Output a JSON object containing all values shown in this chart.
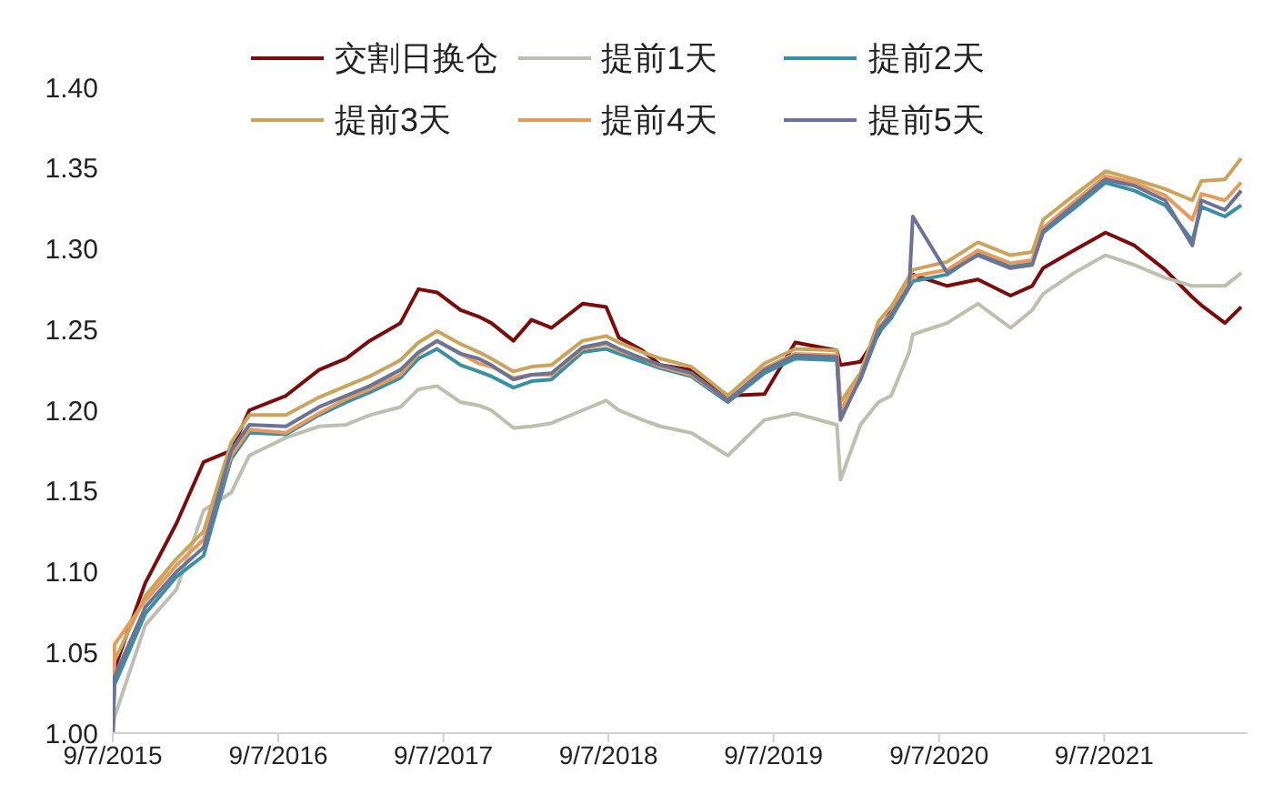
{
  "chart_data": {
    "type": "line",
    "x": [
      "2015-09-07",
      "2015-09-11",
      "2015-11-18",
      "2016-01-26",
      "2016-03-26",
      "2016-05-26",
      "2016-07-05",
      "2016-09-24",
      "2016-12-06",
      "2017-02-04",
      "2017-03-28",
      "2017-06-04",
      "2017-07-14",
      "2017-08-24",
      "2017-10-15",
      "2017-11-24",
      "2017-12-22",
      "2018-02-09",
      "2018-03-21",
      "2018-05-04",
      "2018-07-12",
      "2018-09-02",
      "2018-09-30",
      "2018-11-21",
      "2018-12-31",
      "2019-03-09",
      "2019-05-29",
      "2019-08-18",
      "2019-10-25",
      "2020-01-25",
      "2020-02-02",
      "2020-03-17",
      "2020-04-26",
      "2020-05-24",
      "2020-07-03",
      "2020-07-11",
      "2020-09-25",
      "2020-12-02",
      "2021-02-12",
      "2021-04-01",
      "2021-04-25",
      "2021-07-02",
      "2021-09-10",
      "2021-11-13",
      "2022-01-20",
      "2022-03-21",
      "2022-04-10",
      "2022-06-01",
      "2022-07-07"
    ],
    "series": [
      {
        "name": "交割日换仓",
        "color": "#7b0c0c",
        "values": [
          1.0,
          1.04,
          1.093,
          1.13,
          1.168,
          1.175,
          1.2,
          1.209,
          1.225,
          1.232,
          1.243,
          1.254,
          1.275,
          1.273,
          1.262,
          1.258,
          1.254,
          1.243,
          1.256,
          1.251,
          1.266,
          1.264,
          1.245,
          1.237,
          1.228,
          1.225,
          1.209,
          1.21,
          1.242,
          1.237,
          1.228,
          1.23,
          1.247,
          1.262,
          1.277,
          1.284,
          1.277,
          1.281,
          1.271,
          1.277,
          1.288,
          1.299,
          1.31,
          1.302,
          1.287,
          1.27,
          1.265,
          1.254,
          1.264
        ]
      },
      {
        "name": "提前1天",
        "color": "#bfbfb0",
        "values": [
          1.0,
          1.01,
          1.067,
          1.089,
          1.138,
          1.149,
          1.172,
          1.183,
          1.19,
          1.191,
          1.197,
          1.202,
          1.213,
          1.215,
          1.205,
          1.203,
          1.2,
          1.189,
          1.19,
          1.192,
          1.2,
          1.206,
          1.2,
          1.194,
          1.19,
          1.186,
          1.172,
          1.194,
          1.198,
          1.191,
          1.157,
          1.191,
          1.205,
          1.209,
          1.236,
          1.247,
          1.254,
          1.266,
          1.251,
          1.262,
          1.272,
          1.285,
          1.296,
          1.29,
          1.282,
          1.277,
          1.277,
          1.277,
          1.285
        ]
      },
      {
        "name": "提前2天",
        "color": "#3a8fa3",
        "values": [
          1.0,
          1.03,
          1.074,
          1.097,
          1.11,
          1.17,
          1.186,
          1.185,
          1.197,
          1.205,
          1.211,
          1.22,
          1.232,
          1.238,
          1.228,
          1.224,
          1.221,
          1.214,
          1.218,
          1.219,
          1.236,
          1.238,
          1.235,
          1.23,
          1.226,
          1.221,
          1.205,
          1.223,
          1.232,
          1.231,
          1.197,
          1.219,
          1.248,
          1.257,
          1.276,
          1.28,
          1.284,
          1.297,
          1.29,
          1.291,
          1.31,
          1.325,
          1.341,
          1.336,
          1.327,
          1.305,
          1.326,
          1.32,
          1.327
        ]
      },
      {
        "name": "提前3天",
        "color": "#c9a45c",
        "values": [
          1.0,
          1.045,
          1.085,
          1.108,
          1.125,
          1.18,
          1.197,
          1.197,
          1.208,
          1.215,
          1.221,
          1.231,
          1.242,
          1.249,
          1.241,
          1.236,
          1.232,
          1.224,
          1.227,
          1.228,
          1.243,
          1.246,
          1.242,
          1.236,
          1.232,
          1.227,
          1.209,
          1.229,
          1.238,
          1.237,
          1.205,
          1.223,
          1.255,
          1.264,
          1.283,
          1.287,
          1.292,
          1.304,
          1.296,
          1.298,
          1.318,
          1.333,
          1.348,
          1.343,
          1.337,
          1.33,
          1.342,
          1.343,
          1.356
        ]
      },
      {
        "name": "提前4天",
        "color": "#e89a5c",
        "values": [
          1.0,
          1.055,
          1.082,
          1.104,
          1.12,
          1.172,
          1.188,
          1.186,
          1.198,
          1.207,
          1.213,
          1.222,
          1.235,
          1.243,
          1.235,
          1.229,
          1.227,
          1.22,
          1.222,
          1.222,
          1.238,
          1.241,
          1.237,
          1.232,
          1.227,
          1.222,
          1.206,
          1.226,
          1.235,
          1.234,
          1.2,
          1.221,
          1.251,
          1.26,
          1.279,
          1.283,
          1.287,
          1.299,
          1.291,
          1.293,
          1.313,
          1.329,
          1.345,
          1.341,
          1.333,
          1.318,
          1.334,
          1.33,
          1.341
        ]
      },
      {
        "name": "提前5天",
        "color": "#6b7494",
        "values": [
          1.0,
          1.035,
          1.078,
          1.1,
          1.115,
          1.175,
          1.191,
          1.19,
          1.202,
          1.209,
          1.215,
          1.225,
          1.236,
          1.243,
          1.235,
          1.232,
          1.228,
          1.219,
          1.222,
          1.223,
          1.239,
          1.242,
          1.238,
          1.232,
          1.228,
          1.223,
          1.206,
          1.225,
          1.234,
          1.233,
          1.194,
          1.22,
          1.25,
          1.259,
          1.277,
          1.32,
          1.285,
          1.296,
          1.288,
          1.29,
          1.311,
          1.327,
          1.343,
          1.339,
          1.33,
          1.302,
          1.33,
          1.324,
          1.336
        ]
      }
    ],
    "xlim": [
      "2015-09-07",
      "2022-07-21"
    ],
    "xticks": [
      {
        "value": "2015-09-07",
        "label": "9/7/2015"
      },
      {
        "value": "2016-09-07",
        "label": "9/7/2016"
      },
      {
        "value": "2017-09-07",
        "label": "9/7/2017"
      },
      {
        "value": "2018-09-07",
        "label": "9/7/2018"
      },
      {
        "value": "2019-09-07",
        "label": "9/7/2019"
      },
      {
        "value": "2020-09-07",
        "label": "9/7/2020"
      },
      {
        "value": "2021-09-07",
        "label": "9/7/2021"
      }
    ],
    "ylim": [
      1.0,
      1.4
    ],
    "yticks": [
      {
        "value": 1.0,
        "label": "1.00"
      },
      1.05,
      {
        "value": 1.1,
        "label": "1.10"
      },
      1.15,
      {
        "value": 1.2,
        "label": "1.20"
      },
      1.25,
      {
        "value": 1.3,
        "label": "1.30"
      },
      1.35,
      {
        "value": 1.4,
        "label": "1.40"
      }
    ],
    "grid": false,
    "legend": "top",
    "marker": "none",
    "line_style": "solid"
  }
}
